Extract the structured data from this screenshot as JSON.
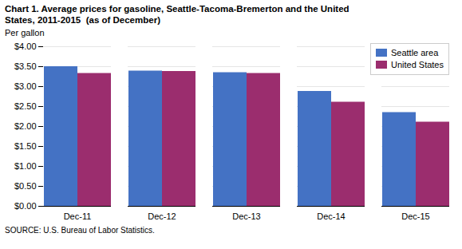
{
  "chart_data": {
    "type": "bar",
    "title": "Chart 1. Average prices for gasoline, Seattle-Tacoma-Bremerton and the United\nStates, 2011-2015  (as of December)",
    "y_label": "Per gallon",
    "caption": "SOURCE: U.S. Bureau of Labor Statistics.",
    "categories": [
      "Dec-11",
      "Dec-12",
      "Dec-13",
      "Dec-14",
      "Dec-15"
    ],
    "series": [
      {
        "name": "Seattle area",
        "color": "#4472C4",
        "values": [
          3.5,
          3.39,
          3.35,
          2.88,
          2.35
        ]
      },
      {
        "name": "United States",
        "color": "#9B2D6E",
        "values": [
          3.33,
          3.38,
          3.33,
          2.61,
          2.11
        ]
      }
    ],
    "ylim": [
      0,
      4.0
    ],
    "yticks": [
      {
        "value": 0.0,
        "label": "$0.00"
      },
      {
        "value": 0.5,
        "label": "$0.50"
      },
      {
        "value": 1.0,
        "label": "$1.00"
      },
      {
        "value": 1.5,
        "label": "$1.50"
      },
      {
        "value": 2.0,
        "label": "$2.00"
      },
      {
        "value": 2.5,
        "label": "$2.50"
      },
      {
        "value": 3.0,
        "label": "$3.00"
      },
      {
        "value": 3.5,
        "label": "$3.50"
      },
      {
        "value": 4.0,
        "label": "$4.00"
      }
    ],
    "grid": true,
    "legend": "upper right"
  }
}
